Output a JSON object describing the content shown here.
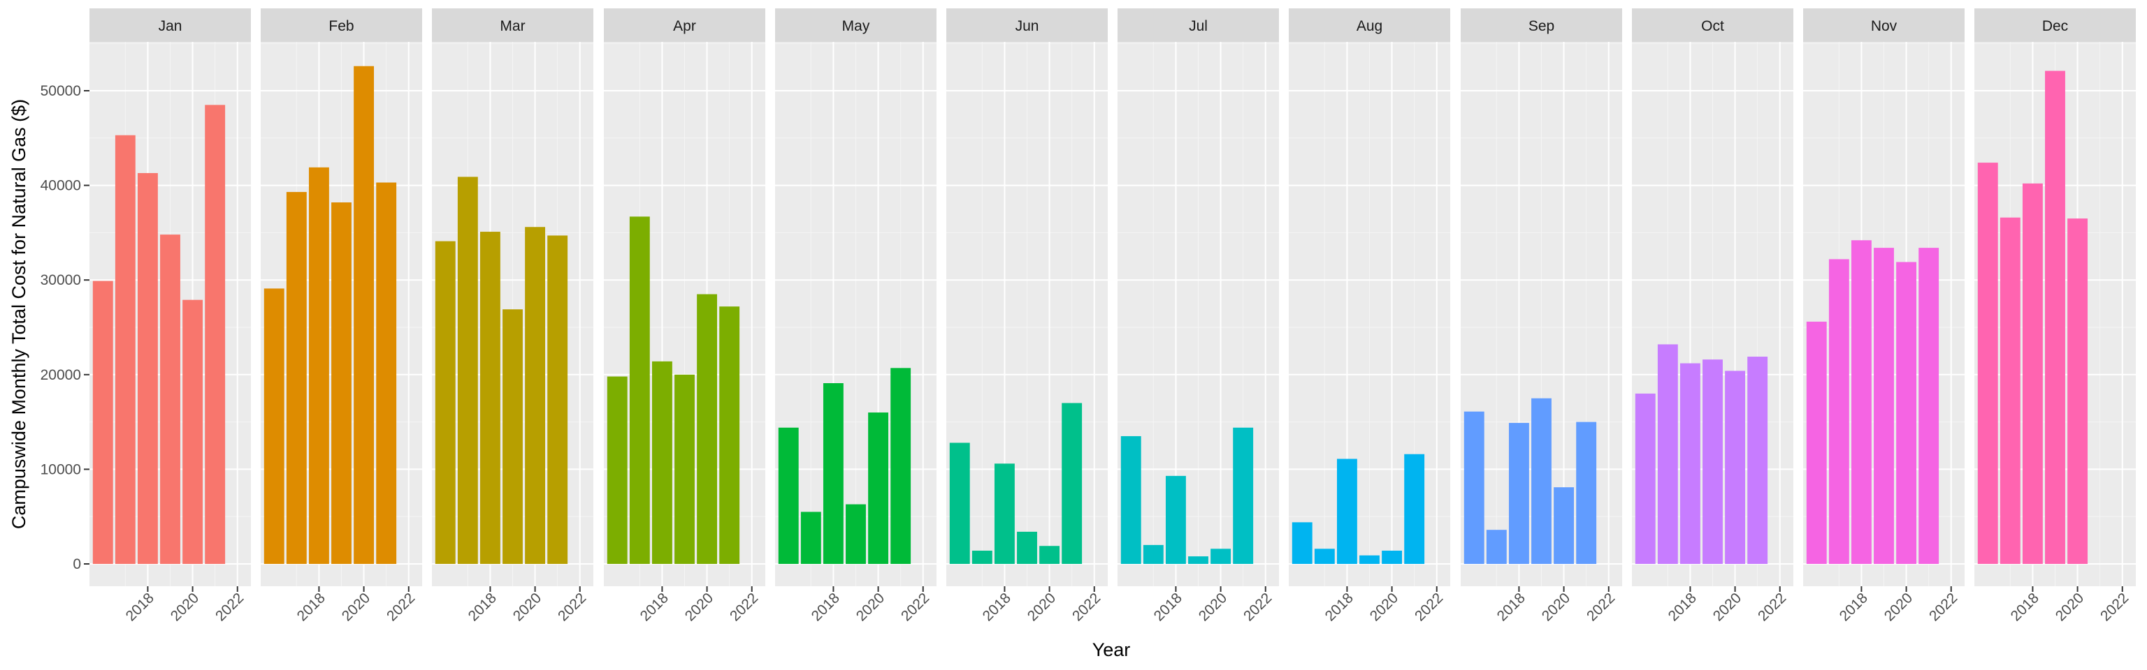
{
  "chart_data": {
    "type": "bar",
    "layout": "faceted by month",
    "xlabel": "Year",
    "ylabel": "Campuswide Monthly Total Cost for Natural Gas ($)",
    "x": [
      2016,
      2017,
      2018,
      2019,
      2020,
      2021,
      2022
    ],
    "x_tick_labels": [
      "2018",
      "2020",
      "2022"
    ],
    "x_ticks": [
      2018,
      2020,
      2022
    ],
    "xlim": [
      2015.4,
      2022.6
    ],
    "ylim": [
      0,
      55000
    ],
    "y_ticks": [
      0,
      10000,
      20000,
      30000,
      40000,
      50000
    ],
    "y_tick_labels": [
      "0",
      "10000",
      "20000",
      "30000",
      "40000",
      "50000"
    ],
    "grid": true,
    "legend": "none",
    "panels": [
      {
        "month": "Jan",
        "color": "#F8766D",
        "values": [
          29900,
          45300,
          41300,
          34800,
          27900,
          48500,
          null
        ]
      },
      {
        "month": "Feb",
        "color": "#DE8C00",
        "values": [
          29100,
          39300,
          41900,
          38200,
          52600,
          40300,
          null
        ]
      },
      {
        "month": "Mar",
        "color": "#B79F00",
        "values": [
          34100,
          40900,
          35100,
          26900,
          35600,
          34700,
          null
        ]
      },
      {
        "month": "Apr",
        "color": "#7CAE00",
        "values": [
          19800,
          36700,
          21400,
          20000,
          28500,
          27200,
          null
        ]
      },
      {
        "month": "May",
        "color": "#00BA38",
        "values": [
          14400,
          5500,
          19100,
          6300,
          16000,
          20700,
          null
        ]
      },
      {
        "month": "Jun",
        "color": "#00C08B",
        "values": [
          12800,
          1400,
          10600,
          3400,
          1900,
          17000,
          null
        ]
      },
      {
        "month": "Jul",
        "color": "#00BFC4",
        "values": [
          13500,
          2000,
          9300,
          800,
          1600,
          14400,
          null
        ]
      },
      {
        "month": "Aug",
        "color": "#00B4F0",
        "values": [
          4400,
          1600,
          11100,
          900,
          1400,
          11600,
          null
        ]
      },
      {
        "month": "Sep",
        "color": "#619CFF",
        "values": [
          16100,
          3600,
          14900,
          17500,
          8100,
          15000,
          null
        ]
      },
      {
        "month": "Oct",
        "color": "#C77CFF",
        "values": [
          18000,
          23200,
          21200,
          21600,
          20400,
          21900,
          null
        ]
      },
      {
        "month": "Nov",
        "color": "#F564E3",
        "values": [
          25600,
          32200,
          34200,
          33400,
          31900,
          33400,
          null
        ]
      },
      {
        "month": "Dec",
        "color": "#FF64B0",
        "values": [
          42400,
          36600,
          40200,
          52100,
          36500,
          null,
          null
        ]
      }
    ]
  }
}
